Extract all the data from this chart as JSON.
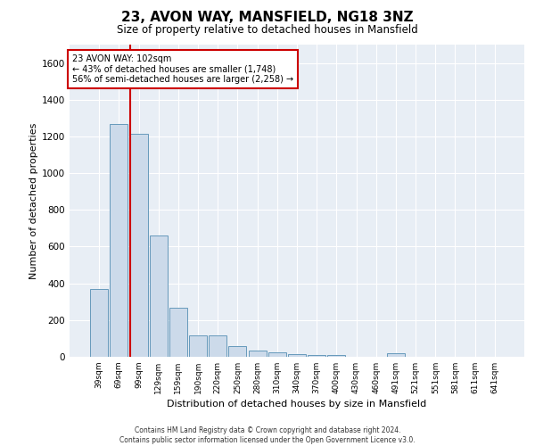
{
  "title": "23, AVON WAY, MANSFIELD, NG18 3NZ",
  "subtitle": "Size of property relative to detached houses in Mansfield",
  "xlabel": "Distribution of detached houses by size in Mansfield",
  "ylabel": "Number of detached properties",
  "footer_line1": "Contains HM Land Registry data © Crown copyright and database right 2024.",
  "footer_line2": "Contains public sector information licensed under the Open Government Licence v3.0.",
  "annotation_line1": "23 AVON WAY: 102sqm",
  "annotation_line2": "← 43% of detached houses are smaller (1,748)",
  "annotation_line3": "56% of semi-detached houses are larger (2,258) →",
  "bar_color": "#ccdaea",
  "bar_edge_color": "#6699bb",
  "vline_color": "#cc0000",
  "annotation_box_edgecolor": "#cc0000",
  "background_color": "#e8eef5",
  "grid_color": "#ffffff",
  "categories": [
    "39sqm",
    "69sqm",
    "99sqm",
    "129sqm",
    "159sqm",
    "190sqm",
    "220sqm",
    "250sqm",
    "280sqm",
    "310sqm",
    "340sqm",
    "370sqm",
    "400sqm",
    "430sqm",
    "460sqm",
    "491sqm",
    "521sqm",
    "551sqm",
    "581sqm",
    "611sqm",
    "641sqm"
  ],
  "values": [
    370,
    1270,
    1215,
    660,
    265,
    115,
    115,
    60,
    35,
    25,
    15,
    12,
    12,
    0,
    0,
    18,
    0,
    0,
    0,
    0,
    0
  ],
  "ylim": [
    0,
    1700
  ],
  "yticks": [
    0,
    200,
    400,
    600,
    800,
    1000,
    1200,
    1400,
    1600
  ],
  "vline_x_index": 2
}
